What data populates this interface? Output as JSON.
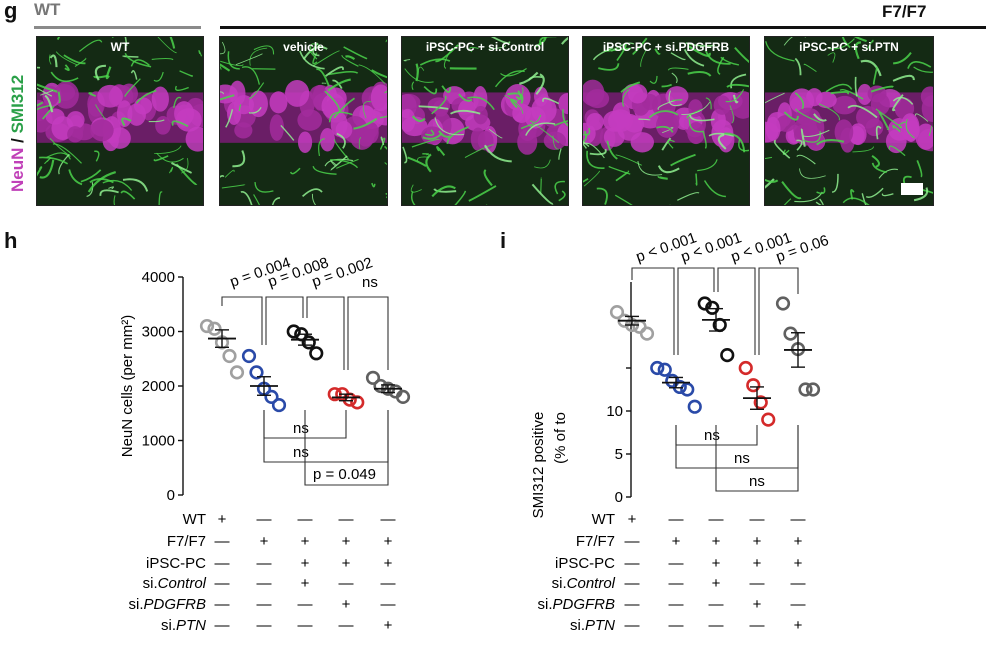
{
  "panel_g": {
    "letter": "g",
    "wt_header": "WT",
    "f7_header": "F7/F7",
    "stain_neun": "NeuN",
    "stain_sep": " / ",
    "stain_smi": "SMI312",
    "stain_neun_color": "#c040b8",
    "stain_smi_color": "#2aa048",
    "images": [
      "WT",
      "vehicle",
      "iPSC-PC + si.Control",
      "iPSC-PC + si.PDGFRB",
      "iPSC-PC + si.PTN"
    ]
  },
  "panel_h": {
    "letter": "h",
    "ylabel": "NeuN cells (per mm²)",
    "yticks": [
      "0",
      "1000",
      "2000",
      "3000",
      "4000"
    ],
    "stats": [
      "p = 0.004",
      "p = 0.008",
      "p = 0.002",
      "ns",
      "ns",
      "ns",
      "p = 0.049"
    ]
  },
  "panel_i": {
    "letter": "i",
    "ylabel_line1": "SMI312 positive",
    "ylabel_line2": "(% of to",
    "yticks": [
      "0",
      "5",
      "10"
    ],
    "stats": [
      "p < 0.001",
      "p < 0.001",
      "p < 0.001",
      "p = 0.06",
      "ns",
      "ns",
      "ns"
    ]
  },
  "table_rows": [
    {
      "label": "WT",
      "signs": [
        "+",
        "—",
        "—",
        "—",
        "—"
      ]
    },
    {
      "label": "F7/F7",
      "signs": [
        "—",
        "+",
        "+",
        "+",
        "+"
      ]
    },
    {
      "label": "iPSC-PC",
      "signs": [
        "—",
        "—",
        "+",
        "+",
        "+"
      ]
    },
    {
      "label_prefix": "si.",
      "label_italic": "Control",
      "signs": [
        "—",
        "—",
        "+",
        "—",
        "—"
      ]
    },
    {
      "label_prefix": "si.",
      "label_italic": "PDGFRB",
      "signs": [
        "—",
        "—",
        "—",
        "+",
        "—"
      ]
    },
    {
      "label_prefix": "si.",
      "label_italic": "PTN",
      "signs": [
        "—",
        "—",
        "—",
        "—",
        "+"
      ]
    }
  ],
  "chart_data": [
    {
      "type": "scatter",
      "title": "",
      "ylabel": "NeuN cells (per mm²)",
      "ylim": [
        0,
        4000
      ],
      "categories": [
        "WT",
        "vehicle",
        "iPSC-PC + si.Control",
        "iPSC-PC + si.PDGFRB",
        "iPSC-PC + si.PTN"
      ],
      "colors": [
        "#a0a0a0",
        "#2a4aa8",
        "#111111",
        "#d42a2a",
        "#606060"
      ],
      "points": [
        [
          3100,
          3050,
          2800,
          2550,
          2250
        ],
        [
          2550,
          2250,
          1950,
          1800,
          1650
        ],
        [
          3000,
          2950,
          2800,
          2600
        ],
        [
          1850,
          1850,
          1750,
          1700
        ],
        [
          2150,
          2000,
          1950,
          1900,
          1800
        ]
      ],
      "means": [
        2870,
        2000,
        2850,
        1790,
        1950
      ],
      "sem": [
        160,
        170,
        100,
        60,
        70
      ]
    },
    {
      "type": "scatter",
      "title": "",
      "ylabel": "SMI312 positive (% of to",
      "ylim": [
        0,
        25
      ],
      "categories": [
        "WT",
        "vehicle",
        "iPSC-PC + si.Control",
        "iPSC-PC + si.PDGFRB",
        "iPSC-PC + si.PTN"
      ],
      "colors": [
        "#a0a0a0",
        "#2a4aa8",
        "#111111",
        "#d42a2a",
        "#606060"
      ],
      "points": [
        [
          21.5,
          20.5,
          20.0,
          19.8,
          19.0
        ],
        [
          15.0,
          14.8,
          13.5,
          12.8,
          12.5,
          10.5
        ],
        [
          22.5,
          22.0,
          20.0,
          16.5
        ],
        [
          15.0,
          13.0,
          11.0,
          9.0
        ],
        [
          22.5,
          19.0,
          17.2,
          12.5,
          12.5
        ]
      ],
      "means": [
        20.5,
        13.3,
        20.6,
        11.5,
        17.1
      ],
      "sem": [
        0.5,
        0.6,
        1.3,
        1.3,
        2.0
      ]
    }
  ]
}
